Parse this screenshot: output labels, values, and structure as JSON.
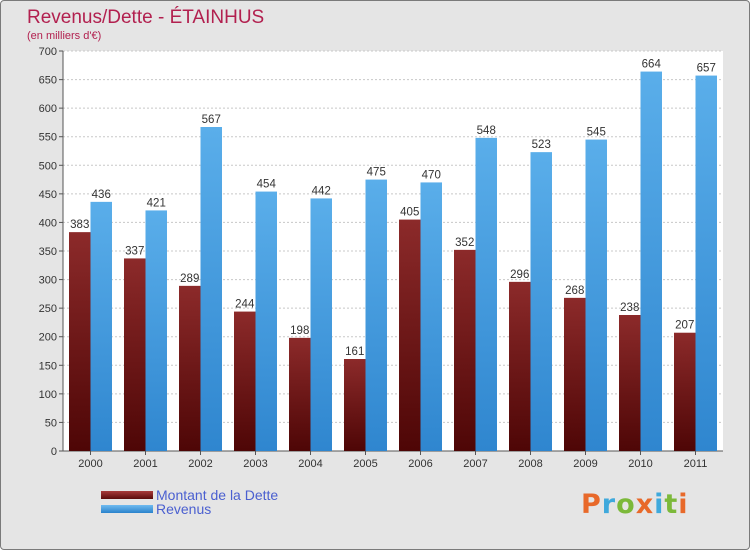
{
  "title": "Revenus/Dette - ÉTAINHUS",
  "subtitle": "(en milliers d'€)",
  "chart_data": {
    "type": "bar",
    "categories": [
      "2000",
      "2001",
      "2002",
      "2003",
      "2004",
      "2005",
      "2006",
      "2007",
      "2008",
      "2009",
      "2010",
      "2011"
    ],
    "series": [
      {
        "name": "Montant de la Dette",
        "values": [
          383,
          337,
          289,
          244,
          198,
          161,
          405,
          352,
          296,
          268,
          238,
          207
        ],
        "color": "#7a1a1a"
      },
      {
        "name": "Revenus",
        "values": [
          436,
          421,
          567,
          454,
          442,
          475,
          470,
          548,
          523,
          545,
          664,
          657
        ],
        "color": "#4a9fe0"
      }
    ],
    "ylim": [
      0,
      700
    ],
    "yticks": [
      0,
      50,
      100,
      150,
      200,
      250,
      300,
      350,
      400,
      450,
      500,
      550,
      600,
      650,
      700
    ],
    "grid": true,
    "legend_position": "bottom-left"
  },
  "legend": {
    "debt_label": "Montant de la Dette",
    "revenue_label": "Revenus"
  },
  "logo": {
    "letters": [
      "P",
      "r",
      "o",
      "x",
      "i",
      "t",
      "i"
    ],
    "colors": [
      "#e8692a",
      "#3fa9dc",
      "#7cb93a",
      "#e8692a",
      "#3fa9dc",
      "#7cb93a",
      "#e8692a"
    ]
  }
}
